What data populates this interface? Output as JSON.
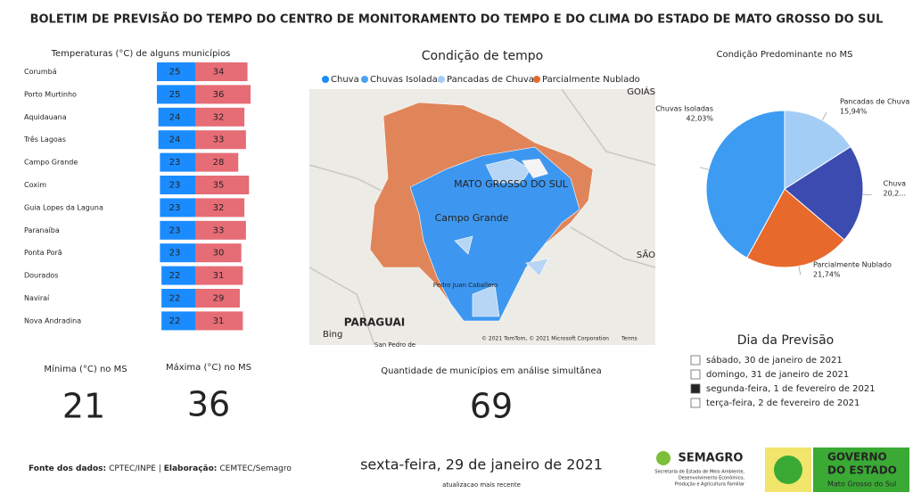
{
  "title": "BOLETIM DE PREVISÃO DO TEMPO DO CENTRO DE MONITORAMENTO DO TEMPO E DO CLIMA DO ESTADO DE MATO GROSSO DO SUL",
  "chart_data": [
    {
      "type": "diverging-bar",
      "title": "Temperaturas (°C) de alguns municípios",
      "categories": [
        "Corumbá",
        "Porto Murtinho",
        "Aquidauana",
        "Três Lagoas",
        "Campo Grande",
        "Coxim",
        "Guia Lopes da Laguna",
        "Paranaíba",
        "Ponta Porã",
        "Dourados",
        "Naviraí",
        "Nova Andradina"
      ],
      "series": [
        {
          "color": "#1a8cff",
          "values": [
            25,
            25,
            24,
            24,
            23,
            23,
            23,
            23,
            23,
            22,
            22,
            22
          ]
        },
        {
          "color": "#e66c76",
          "values": [
            34,
            36,
            32,
            33,
            28,
            35,
            32,
            33,
            30,
            31,
            29,
            31
          ]
        }
      ]
    },
    {
      "type": "pie",
      "title": "Condição Predominante no MS",
      "categories": [
        "Pancadas de Chuva",
        "Chuva",
        "Parcialmente Nublado",
        "Chuvas Isoladas"
      ],
      "values": [
        15.94,
        20.29,
        21.74,
        42.03
      ],
      "value_labels": [
        "15,94%",
        "20,2...",
        "21,74%",
        "42,03%"
      ],
      "colors": [
        "#a4cdf6",
        "#3b4bb0",
        "#e8692c",
        "#3d9bf2"
      ]
    }
  ],
  "map": {
    "title": "Condição de tempo",
    "legend": [
      {
        "name": "Chuva",
        "color": "#1a8cff"
      },
      {
        "name": "Chuvas Isoladas",
        "color": "#4aa3f5"
      },
      {
        "name": "Pancadas de Chuva",
        "color": "#a4cdf6"
      },
      {
        "name": "Parcialmente Nublado",
        "color": "#e8692c"
      }
    ],
    "labels": {
      "state": "MATO GROSSO DO SUL",
      "city": "Campo Grande",
      "city2": "Pedro Juan Caballero",
      "country": "PARAGUAI",
      "north": "GOIÁS",
      "east": "SÃO",
      "south": "San Pedro de"
    },
    "brand": "Bing",
    "copyright": "© 2021 TomTom, © 2021 Microsoft Corporation",
    "terms": "Terms"
  },
  "kpis": [
    {
      "label": "Mínima (°C) no MS",
      "value": "21"
    },
    {
      "label": "Máxima (°C) no MS",
      "value": "36"
    },
    {
      "label": "Quantidade de municípios em análise simultânea",
      "value": "69"
    }
  ],
  "slicer": {
    "title": "Dia da Previsão",
    "options": [
      "sábado, 30 de janeiro de 2021",
      "domingo, 31 de janeiro de 2021",
      "segunda-feira, 1 de fevereiro de 2021",
      "terça-feira, 2 de fevereiro de 2021"
    ],
    "selected": 2
  },
  "footer": {
    "source_label": "Fonte dos dados:",
    "source": "CPTEC/INPE |",
    "credit_label": "Elaboração:",
    "credit": "CEMTEC/Semagro",
    "date": "sexta-feira, 29 de janeiro de 2021",
    "date_note": "atualizacao mais recente"
  },
  "logos": {
    "semagro": "SEMAGRO",
    "semagro_sub": [
      "Secretaria de Estado de Meio Ambiente,",
      "Desenvolvimento Econômico,",
      "Produção e Agricultura Familiar"
    ],
    "gov1": "GOVERNO",
    "gov2": "DO ESTADO",
    "gov3": "Mato Grosso do Sul"
  }
}
